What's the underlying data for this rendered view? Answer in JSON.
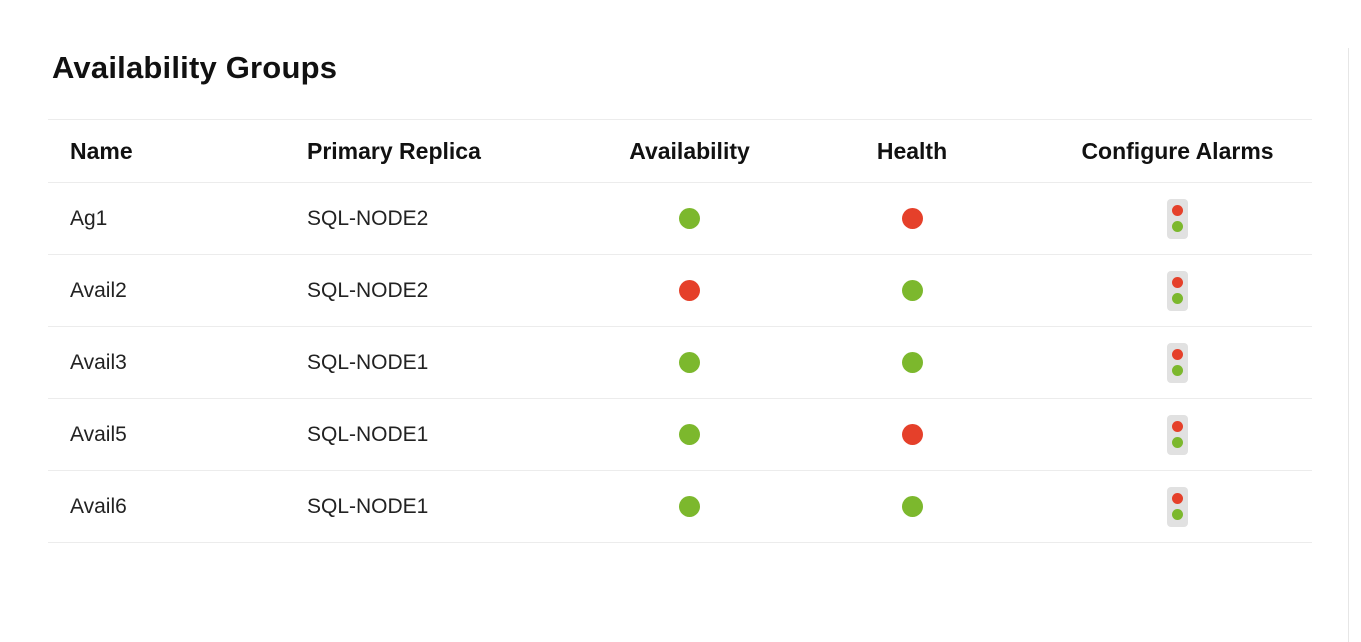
{
  "page": {
    "title": "Availability Groups"
  },
  "table": {
    "columns": [
      {
        "key": "name",
        "label": "Name"
      },
      {
        "key": "primary_replica",
        "label": "Primary Replica"
      },
      {
        "key": "availability",
        "label": "Availability"
      },
      {
        "key": "health",
        "label": "Health"
      },
      {
        "key": "configure_alarms",
        "label": "Configure Alarms"
      }
    ],
    "rows": [
      {
        "name": "Ag1",
        "primary_replica": "SQL-NODE2",
        "availability": "up",
        "health": "critical"
      },
      {
        "name": "Avail2",
        "primary_replica": "SQL-NODE2",
        "availability": "down",
        "health": "ok"
      },
      {
        "name": "Avail3",
        "primary_replica": "SQL-NODE1",
        "availability": "up",
        "health": "ok"
      },
      {
        "name": "Avail5",
        "primary_replica": "SQL-NODE1",
        "availability": "up",
        "health": "critical"
      },
      {
        "name": "Avail6",
        "primary_replica": "SQL-NODE1",
        "availability": "up",
        "health": "ok"
      }
    ]
  },
  "icons": {
    "configure_alarms": "traffic-light-icon"
  },
  "colors": {
    "status_up": "#7cb82d",
    "status_down": "#e5402a",
    "row_border": "#ececec",
    "icon_bg": "#e1e1e1",
    "text": "#1a1a1a"
  }
}
